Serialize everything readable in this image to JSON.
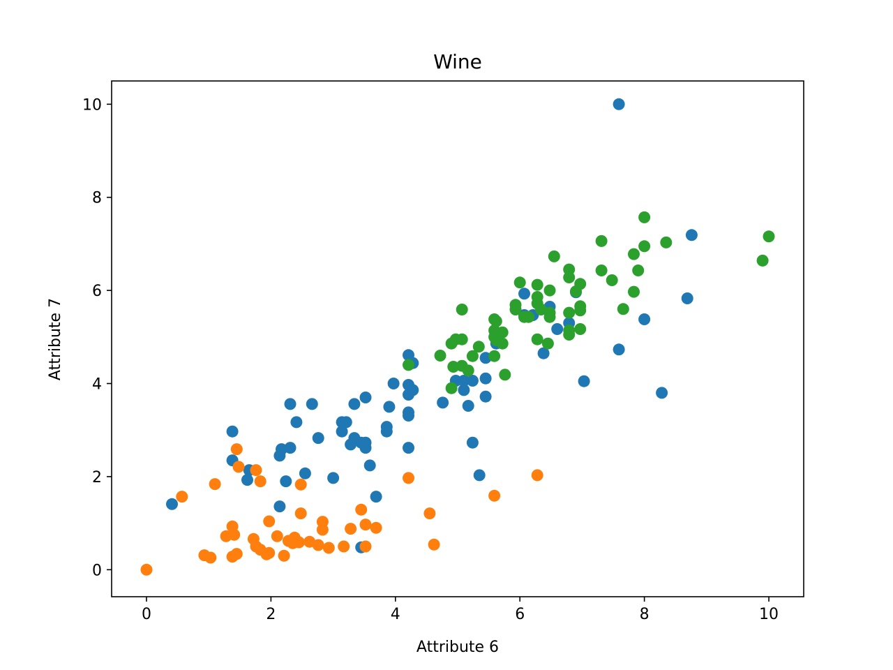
{
  "chart_data": {
    "type": "scatter",
    "title": "Wine",
    "xlabel": "Attribute 6",
    "ylabel": "Attribute 7",
    "xlim": [
      -0.56,
      10.56
    ],
    "ylim": [
      -0.58,
      10.5
    ],
    "xticks": [
      0,
      2,
      4,
      6,
      8,
      10
    ],
    "yticks": [
      0,
      2,
      4,
      6,
      8,
      10
    ],
    "grid": false,
    "colors": [
      "#1f77b4",
      "#ff7f0e",
      "#2ca02c"
    ],
    "series": [
      {
        "color": "#1f77b4",
        "points": [
          [
            7.59,
            10.0
          ],
          [
            8.76,
            7.19
          ],
          [
            8.69,
            5.83
          ],
          [
            8.0,
            5.38
          ],
          [
            7.59,
            4.73
          ],
          [
            8.28,
            3.8
          ],
          [
            7.03,
            4.05
          ],
          [
            6.9,
            5.96
          ],
          [
            6.48,
            5.65
          ],
          [
            6.6,
            5.17
          ],
          [
            6.79,
            5.3
          ],
          [
            6.38,
            4.65
          ],
          [
            6.07,
            5.93
          ],
          [
            6.07,
            5.47
          ],
          [
            6.21,
            5.47
          ],
          [
            5.62,
            4.86
          ],
          [
            5.45,
            4.55
          ],
          [
            5.24,
            4.06
          ],
          [
            5.45,
            4.11
          ],
          [
            5.45,
            3.72
          ],
          [
            4.97,
            4.06
          ],
          [
            5.1,
            4.06
          ],
          [
            5.1,
            3.86
          ],
          [
            5.17,
            3.52
          ],
          [
            5.24,
            2.73
          ],
          [
            5.35,
            2.03
          ],
          [
            4.76,
            3.59
          ],
          [
            4.21,
            4.61
          ],
          [
            4.28,
            4.44
          ],
          [
            4.21,
            3.97
          ],
          [
            4.28,
            3.86
          ],
          [
            4.21,
            3.76
          ],
          [
            4.21,
            3.38
          ],
          [
            4.21,
            3.31
          ],
          [
            4.21,
            2.62
          ],
          [
            3.97,
            4.0
          ],
          [
            3.9,
            3.5
          ],
          [
            3.86,
            3.07
          ],
          [
            3.86,
            2.97
          ],
          [
            3.52,
            3.7
          ],
          [
            3.34,
            3.56
          ],
          [
            3.14,
            3.17
          ],
          [
            3.21,
            3.17
          ],
          [
            3.14,
            2.97
          ],
          [
            3.34,
            2.83
          ],
          [
            3.45,
            2.73
          ],
          [
            3.52,
            2.73
          ],
          [
            3.28,
            2.69
          ],
          [
            3.52,
            2.62
          ],
          [
            3.59,
            2.24
          ],
          [
            3.69,
            1.57
          ],
          [
            3.45,
            0.48
          ],
          [
            3.0,
            1.97
          ],
          [
            2.76,
            2.83
          ],
          [
            2.66,
            3.56
          ],
          [
            2.31,
            3.56
          ],
          [
            2.41,
            3.17
          ],
          [
            2.31,
            2.62
          ],
          [
            2.17,
            2.59
          ],
          [
            2.14,
            2.45
          ],
          [
            2.55,
            2.07
          ],
          [
            2.24,
            1.9
          ],
          [
            2.14,
            1.36
          ],
          [
            1.38,
            2.97
          ],
          [
            1.38,
            2.35
          ],
          [
            1.65,
            2.14
          ],
          [
            1.62,
            1.93
          ],
          [
            0.41,
            1.41
          ]
        ]
      },
      {
        "color": "#ff7f0e",
        "points": [
          [
            0.0,
            0.0
          ],
          [
            0.57,
            1.57
          ],
          [
            1.1,
            1.84
          ],
          [
            1.45,
            2.59
          ],
          [
            1.48,
            2.21
          ],
          [
            1.76,
            2.14
          ],
          [
            1.83,
            1.9
          ],
          [
            2.48,
            1.83
          ],
          [
            4.21,
            1.97
          ],
          [
            6.28,
            2.03
          ],
          [
            5.59,
            1.59
          ],
          [
            4.55,
            1.21
          ],
          [
            4.62,
            0.54
          ],
          [
            3.45,
            1.29
          ],
          [
            3.52,
            0.97
          ],
          [
            3.69,
            0.9
          ],
          [
            3.28,
            0.88
          ],
          [
            3.52,
            0.5
          ],
          [
            3.17,
            0.5
          ],
          [
            2.83,
            1.03
          ],
          [
            2.83,
            0.86
          ],
          [
            2.48,
            1.21
          ],
          [
            1.97,
            1.04
          ],
          [
            1.38,
            0.93
          ],
          [
            1.41,
            0.75
          ],
          [
            1.28,
            0.72
          ],
          [
            1.72,
            0.66
          ],
          [
            2.1,
            0.72
          ],
          [
            2.28,
            0.62
          ],
          [
            2.38,
            0.69
          ],
          [
            2.45,
            0.59
          ],
          [
            2.62,
            0.6
          ],
          [
            2.76,
            0.53
          ],
          [
            2.93,
            0.47
          ],
          [
            2.35,
            0.57
          ],
          [
            2.21,
            0.3
          ],
          [
            1.97,
            0.36
          ],
          [
            1.93,
            0.33
          ],
          [
            1.76,
            0.5
          ],
          [
            1.83,
            0.43
          ],
          [
            1.45,
            0.34
          ],
          [
            1.38,
            0.28
          ],
          [
            0.93,
            0.31
          ],
          [
            1.03,
            0.26
          ]
        ]
      },
      {
        "color": "#2ca02c",
        "points": [
          [
            8.0,
            7.57
          ],
          [
            10.0,
            7.16
          ],
          [
            9.9,
            6.64
          ],
          [
            8.35,
            7.03
          ],
          [
            8.0,
            6.95
          ],
          [
            7.31,
            7.06
          ],
          [
            7.83,
            6.78
          ],
          [
            7.9,
            6.43
          ],
          [
            7.31,
            6.43
          ],
          [
            7.48,
            6.22
          ],
          [
            7.83,
            5.97
          ],
          [
            7.66,
            5.6
          ],
          [
            6.55,
            6.73
          ],
          [
            6.79,
            6.45
          ],
          [
            6.79,
            6.28
          ],
          [
            6.97,
            6.14
          ],
          [
            6.9,
            5.98
          ],
          [
            6.97,
            5.66
          ],
          [
            6.97,
            5.57
          ],
          [
            6.79,
            5.52
          ],
          [
            6.97,
            5.17
          ],
          [
            6.79,
            5.14
          ],
          [
            6.79,
            5.05
          ],
          [
            6.28,
            6.12
          ],
          [
            6.48,
            6.0
          ],
          [
            6.28,
            5.86
          ],
          [
            6.28,
            5.72
          ],
          [
            6.34,
            5.59
          ],
          [
            6.48,
            5.52
          ],
          [
            6.48,
            5.43
          ],
          [
            6.0,
            6.17
          ],
          [
            5.93,
            5.69
          ],
          [
            5.93,
            5.59
          ],
          [
            6.07,
            5.43
          ],
          [
            6.14,
            5.43
          ],
          [
            6.28,
            4.95
          ],
          [
            6.45,
            4.86
          ],
          [
            5.59,
            5.38
          ],
          [
            5.62,
            5.34
          ],
          [
            5.59,
            5.14
          ],
          [
            5.72,
            5.1
          ],
          [
            5.59,
            5.0
          ],
          [
            5.62,
            4.93
          ],
          [
            5.72,
            4.86
          ],
          [
            5.59,
            4.59
          ],
          [
            5.76,
            4.19
          ],
          [
            5.07,
            5.59
          ],
          [
            4.97,
            4.95
          ],
          [
            5.07,
            4.95
          ],
          [
            4.9,
            4.86
          ],
          [
            5.34,
            4.79
          ],
          [
            4.72,
            4.6
          ],
          [
            5.24,
            4.59
          ],
          [
            5.07,
            4.38
          ],
          [
            4.93,
            4.36
          ],
          [
            5.17,
            4.28
          ],
          [
            4.9,
            3.9
          ],
          [
            4.21,
            4.4
          ]
        ]
      }
    ]
  }
}
